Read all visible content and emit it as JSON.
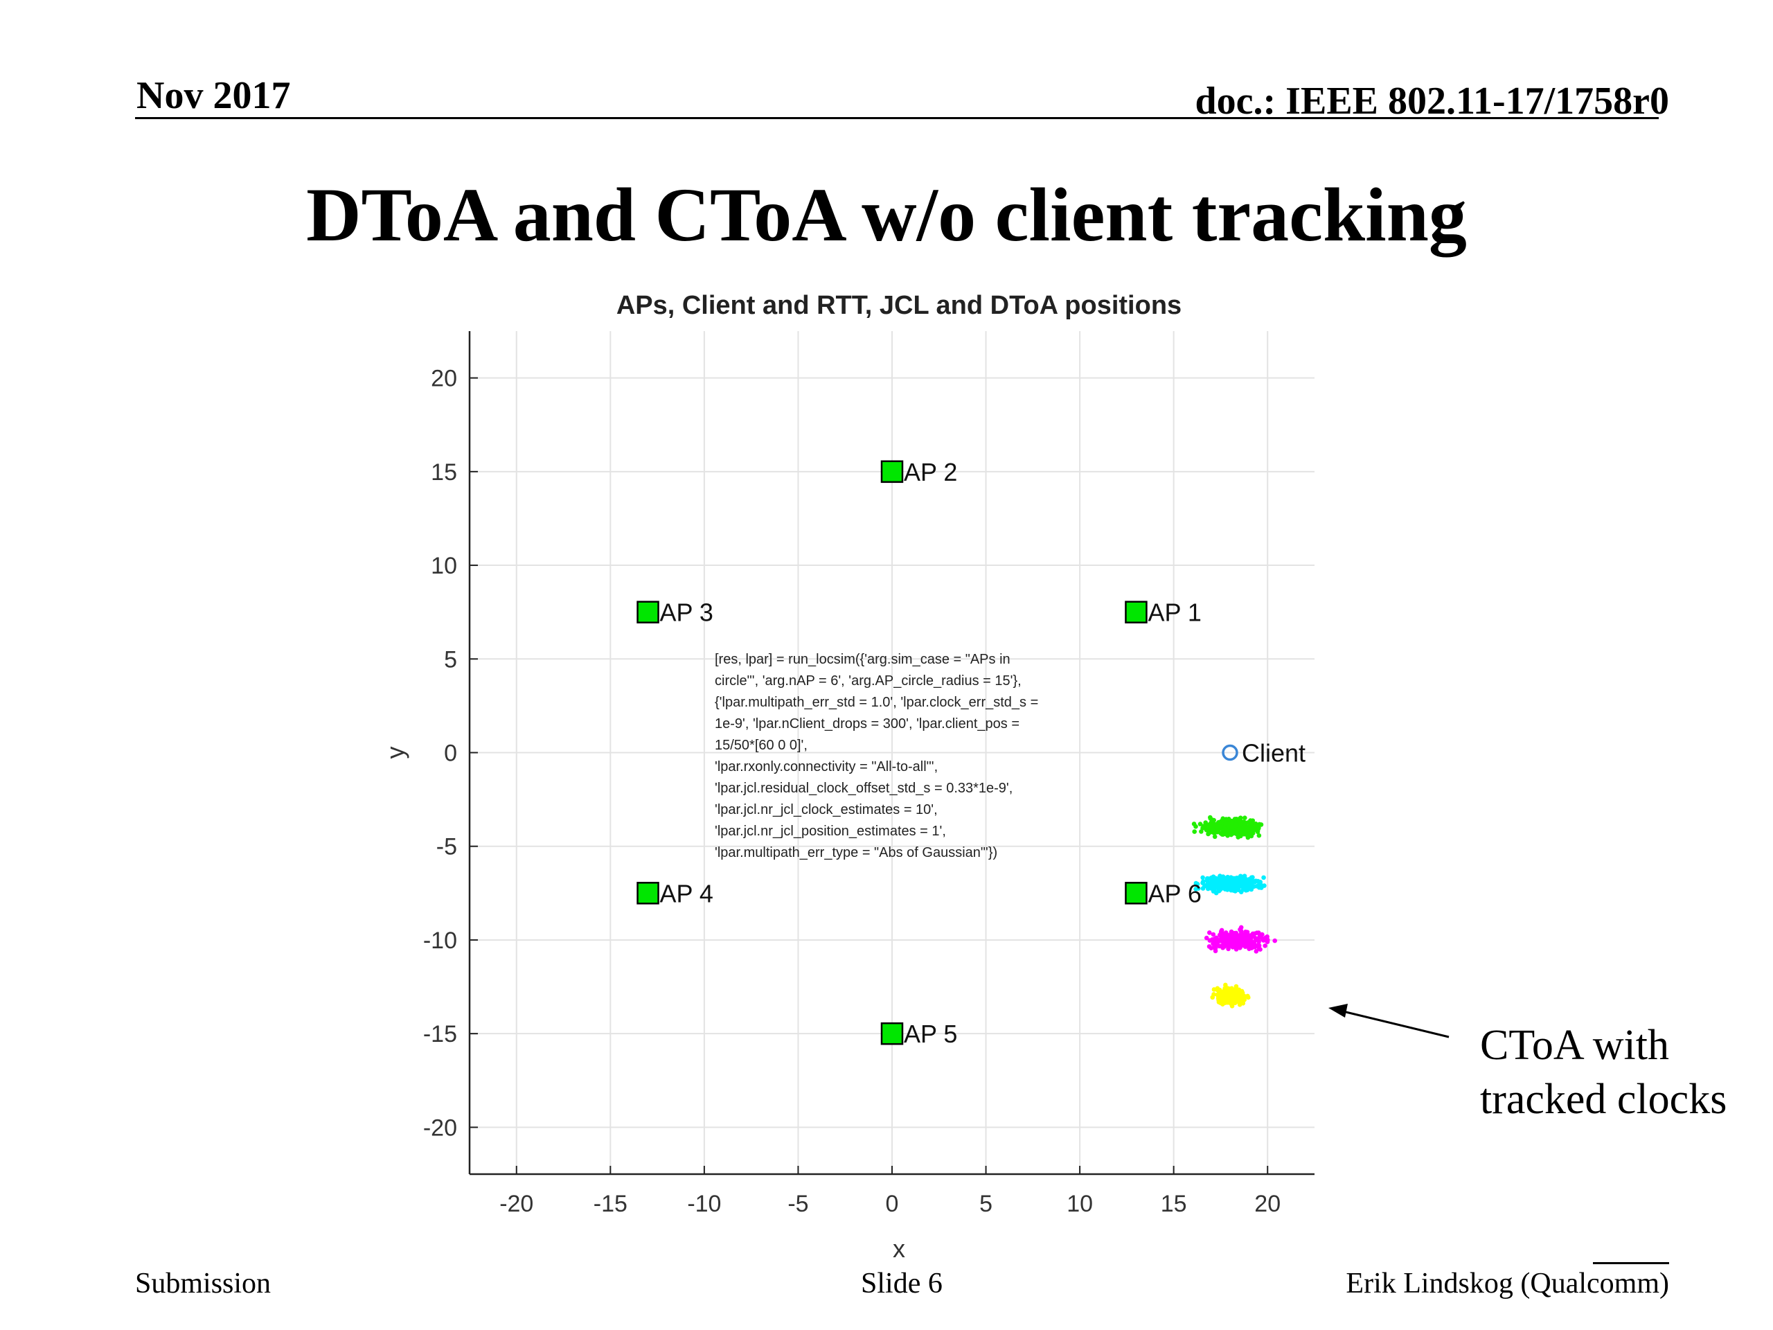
{
  "header": {
    "date": "Nov 2017",
    "doc": "doc.: IEEE 802.11-17/1758r0"
  },
  "slide_title": "DToA and CToA w/o client tracking",
  "annotation": {
    "line1": "CToA with",
    "line2": "tracked clocks"
  },
  "footer": {
    "left": "Submission",
    "center": "Slide 6",
    "right": "Erik Lindskog (Qualcomm)"
  },
  "chart_data": {
    "type": "scatter",
    "title": "APs, Client and RTT, JCL and DToA positions",
    "xlabel": "x",
    "ylabel": "y",
    "xlim": [
      -22.5,
      22.5
    ],
    "ylim": [
      -22.5,
      22.5
    ],
    "xticks": [
      -20,
      -15,
      -10,
      -5,
      0,
      5,
      10,
      15,
      20
    ],
    "yticks": [
      -20,
      -15,
      -10,
      -5,
      0,
      5,
      10,
      15,
      20
    ],
    "grid": true,
    "access_points": [
      {
        "label": "AP 1",
        "x": 13,
        "y": 7.5
      },
      {
        "label": "AP 2",
        "x": 0,
        "y": 15
      },
      {
        "label": "AP 3",
        "x": -13,
        "y": 7.5
      },
      {
        "label": "AP 4",
        "x": -13,
        "y": -7.5
      },
      {
        "label": "AP 5",
        "x": 0,
        "y": -15
      },
      {
        "label": "AP 6",
        "x": 13,
        "y": -7.5
      }
    ],
    "ap_color": "#00e600",
    "client": {
      "label": "Client",
      "x": 18,
      "y": 0,
      "color": "#3a86d6"
    },
    "clusters": [
      {
        "color": "#22ee00",
        "center_x": 18,
        "center_y": -4,
        "spread_x": 1.9,
        "spread_y": 0.55
      },
      {
        "color": "#00eeff",
        "center_x": 18,
        "center_y": -7,
        "spread_x": 1.9,
        "spread_y": 0.55
      },
      {
        "color": "#ff00ff",
        "center_x": 18.5,
        "center_y": -10,
        "spread_x": 1.9,
        "spread_y": 0.6
      },
      {
        "color": "#ffff00",
        "center_x": 18,
        "center_y": -13,
        "spread_x": 0.9,
        "spread_y": 0.55
      }
    ],
    "code_text": [
      "[res, lpar] = run_locsim({'arg.sim_case = \"APs in",
      "circle\"', 'arg.nAP = 6', 'arg.AP_circle_radius = 15'},",
      "{'lpar.multipath_err_std = 1.0', 'lpar.clock_err_std_s =",
      "1e-9', 'lpar.nClient_drops = 300', 'lpar.client_pos =",
      "15/50*[60 0 0]',",
      "'lpar.rxonly.connectivity = \"All-to-all\"',",
      "'lpar.jcl.residual_clock_offset_std_s = 0.33*1e-9',",
      "'lpar.jcl.nr_jcl_clock_estimates = 10',",
      "'lpar.jcl.nr_jcl_position_estimates = 1',",
      "'lpar.multipath_err_type = \"Abs of Gaussian\"'})"
    ]
  }
}
